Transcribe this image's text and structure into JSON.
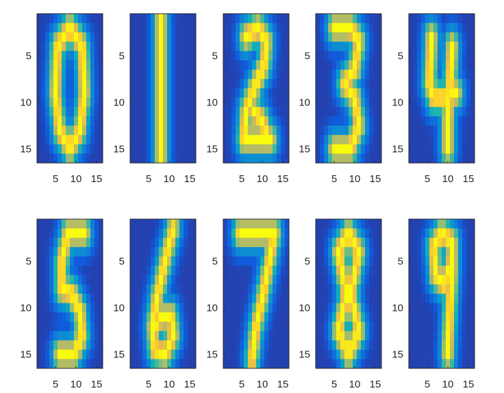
{
  "chart_data": {
    "type": "heatmap",
    "layout": "2 rows x 5 columns",
    "grid": false,
    "colormap": "parula",
    "x_ticks": [
      "5",
      "10",
      "15"
    ],
    "y_ticks": [
      "5",
      "10",
      "15"
    ],
    "panels": [
      {
        "digit": "0",
        "xlim": [
          0.5,
          16.5
        ],
        "ylim": [
          0.5,
          16.5
        ],
        "strokes": [
          [
            [
              8.5,
              2
            ],
            [
              11.5,
              4
            ],
            [
              12,
              9
            ],
            [
              11,
              13
            ],
            [
              8.5,
              15
            ],
            [
              6,
              13
            ],
            [
              5,
              9
            ],
            [
              5.5,
              4
            ],
            [
              8.5,
              2
            ]
          ]
        ]
      },
      {
        "digit": "1",
        "xlim": [
          0.5,
          16.5
        ],
        "ylim": [
          0.5,
          16.5
        ],
        "strokes": [
          [
            [
              8,
              1.2
            ],
            [
              8,
              15.8
            ]
          ]
        ]
      },
      {
        "digit": "2",
        "xlim": [
          0.5,
          16.5
        ],
        "ylim": [
          0.5,
          16.5
        ],
        "strokes": [
          [
            [
              6,
              3
            ],
            [
              9,
              2
            ],
            [
              11,
              3.5
            ],
            [
              10.5,
              6
            ],
            [
              8,
              8.5
            ],
            [
              6,
              11
            ],
            [
              5.5,
              14
            ],
            [
              10,
              14
            ],
            [
              12,
              14
            ]
          ],
          [
            [
              8,
              11
            ],
            [
              10,
              12
            ],
            [
              11,
              13.5
            ]
          ]
        ]
      },
      {
        "digit": "3",
        "xlim": [
          0.5,
          16.5
        ],
        "ylim": [
          0.5,
          16.5
        ],
        "strokes": [
          [
            [
              5,
              2
            ],
            [
              9,
              2
            ],
            [
              11,
              3.5
            ],
            [
              10,
              6.5
            ],
            [
              7.5,
              8
            ],
            [
              10,
              9.5
            ],
            [
              11,
              12.5
            ],
            [
              9,
              15
            ],
            [
              5,
              15
            ]
          ]
        ]
      },
      {
        "digit": "4",
        "xlim": [
          0.5,
          16.5
        ],
        "ylim": [
          0.5,
          16.5
        ],
        "strokes": [
          [
            [
              6,
              3
            ],
            [
              5.5,
              8
            ],
            [
              6.5,
              9.5
            ],
            [
              10,
              9.5
            ],
            [
              12,
              9
            ]
          ],
          [
            [
              11,
              4
            ],
            [
              10.5,
              8
            ],
            [
              10,
              12
            ],
            [
              10,
              15
            ]
          ]
        ]
      },
      {
        "digit": "5",
        "xlim": [
          0.5,
          16.5
        ],
        "ylim": [
          0.5,
          16.5
        ],
        "strokes": [
          [
            [
              12,
              2
            ],
            [
              8,
              2
            ],
            [
              6.5,
              5
            ],
            [
              6.5,
              8
            ],
            [
              9,
              8.5
            ],
            [
              11,
              10.5
            ],
            [
              11.5,
              13
            ],
            [
              9.5,
              15
            ],
            [
              6,
              15
            ]
          ]
        ]
      },
      {
        "digit": "6",
        "xlim": [
          0.5,
          16.5
        ],
        "ylim": [
          0.5,
          16.5
        ],
        "strokes": [
          [
            [
              11,
              1.5
            ],
            [
              9,
              5
            ],
            [
              7,
              9
            ],
            [
              6,
              12
            ],
            [
              6.5,
              14.5
            ],
            [
              9,
              15
            ],
            [
              11,
              13
            ],
            [
              10.5,
              11
            ],
            [
              8,
              11
            ],
            [
              6.5,
              12
            ]
          ]
        ]
      },
      {
        "digit": "7",
        "xlim": [
          0.5,
          16.5
        ],
        "ylim": [
          0.5,
          16.5
        ],
        "strokes": [
          [
            [
              4.5,
              2
            ],
            [
              13,
              2
            ],
            [
              11.5,
              5.5
            ],
            [
              10,
              9
            ],
            [
              8.5,
              12
            ],
            [
              7.5,
              15.5
            ]
          ]
        ]
      },
      {
        "digit": "8",
        "xlim": [
          0.5,
          16.5
        ],
        "ylim": [
          0.5,
          16.5
        ],
        "strokes": [
          [
            [
              8.5,
              2
            ],
            [
              11,
              4
            ],
            [
              9.5,
              7.5
            ],
            [
              7.5,
              9.5
            ],
            [
              6,
              12.5
            ],
            [
              8.5,
              15
            ],
            [
              11,
              12.5
            ],
            [
              9.5,
              9.5
            ],
            [
              7.5,
              7.5
            ],
            [
              6,
              4
            ],
            [
              8.5,
              2
            ]
          ]
        ]
      },
      {
        "digit": "9",
        "xlim": [
          0.5,
          16.5
        ],
        "ylim": [
          0.5,
          16.5
        ],
        "strokes": [
          [
            [
              11,
              5
            ],
            [
              9,
              7.5
            ],
            [
              7,
              6.5
            ],
            [
              6.5,
              3.5
            ],
            [
              8.5,
              2
            ],
            [
              11,
              3
            ],
            [
              11,
              6
            ],
            [
              10.5,
              10
            ],
            [
              10,
              15
            ]
          ]
        ]
      }
    ]
  }
}
